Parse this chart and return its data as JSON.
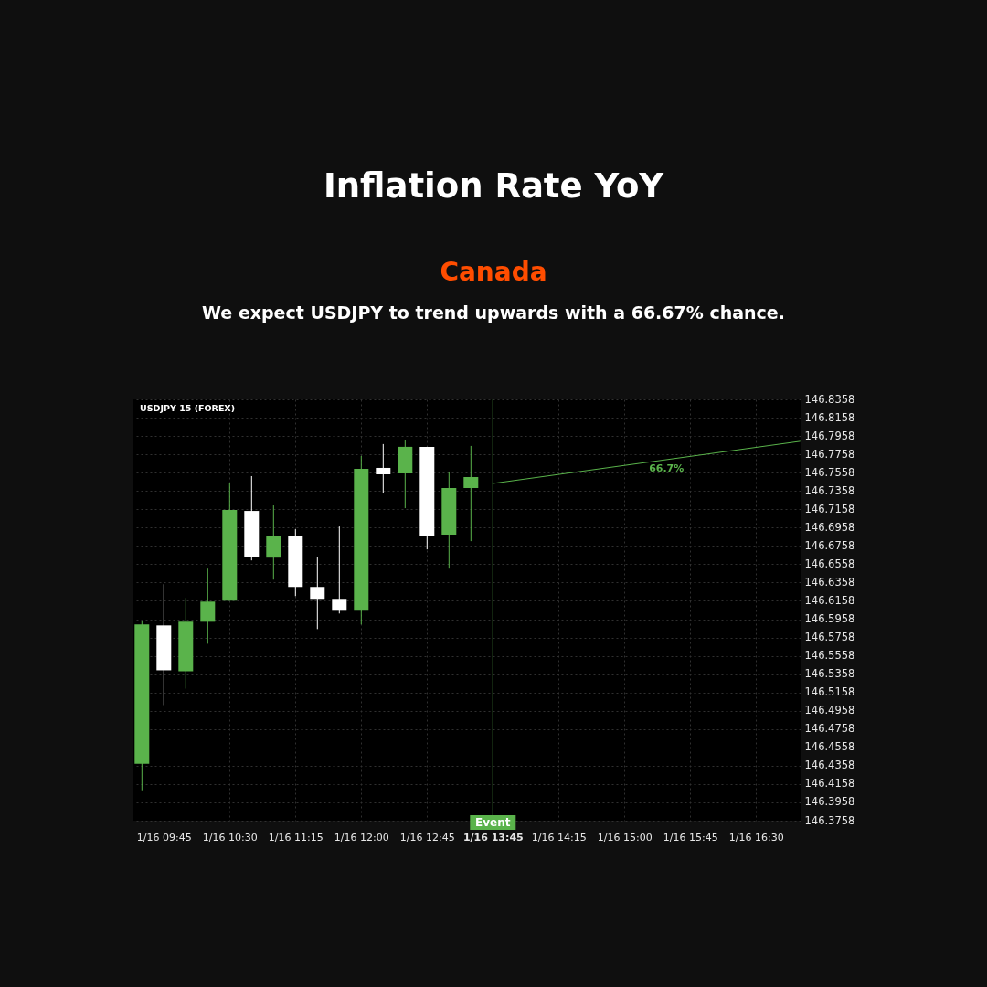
{
  "chart_data": {
    "type": "candlestick",
    "title": "Inflation Rate YoY",
    "subtitle": "Canada",
    "annotations": [
      "We expect USDJPY to trend upwards with a 66.67% chance.",
      "USDJPY 15 (FOREX)",
      {
        "text": "66.7%",
        "y": 146.77
      }
    ],
    "categories": [
      null,
      "1/16 09:45",
      null,
      null,
      "1/16 10:30",
      null,
      null,
      "1/16 11:15",
      null,
      null,
      "1/16 12:00",
      null,
      null,
      "1/16 12:45",
      null,
      null,
      "1/16 13:45",
      null,
      null,
      "1/16 14:15",
      null,
      null,
      "1/16 15:00",
      null,
      null,
      "1/16 15:45",
      null,
      null,
      "1/16 16:30",
      null,
      null
    ],
    "ohlc": [
      [
        146.438,
        146.594,
        146.409,
        146.59
      ],
      [
        146.589,
        146.634,
        146.502,
        146.54
      ],
      [
        146.539,
        146.619,
        146.52,
        146.593
      ],
      [
        146.593,
        146.651,
        146.569,
        146.615
      ],
      [
        146.616,
        146.745,
        146.616,
        146.715
      ],
      [
        146.714,
        146.752,
        146.66,
        146.664
      ],
      [
        146.663,
        146.72,
        146.639,
        146.687
      ],
      [
        146.687,
        146.694,
        146.621,
        146.631
      ],
      [
        146.631,
        146.664,
        146.585,
        146.618
      ],
      [
        146.618,
        146.697,
        146.602,
        146.605
      ],
      [
        146.605,
        146.774,
        146.59,
        146.76
      ],
      [
        146.761,
        146.787,
        146.733,
        146.754
      ],
      [
        146.755,
        146.791,
        146.717,
        146.784
      ],
      [
        146.784,
        146.784,
        146.672,
        146.687
      ],
      [
        146.688,
        146.757,
        146.651,
        146.739
      ],
      [
        146.739,
        146.785,
        146.681,
        146.751
      ],
      null,
      null,
      null,
      null,
      null,
      null,
      null,
      null,
      null,
      null,
      null,
      null,
      null,
      null,
      null
    ],
    "colors": [
      "#5ab34b",
      "#ffffff",
      "#5ab34b",
      "#5ab34b",
      "#5ab34b",
      "#ffffff",
      "#5ab34b",
      "#ffffff",
      "#ffffff",
      "#ffffff",
      "#5ab34b",
      "#ffffff",
      "#5ab34b",
      "#ffffff",
      "#5ab34b",
      "#5ab34b",
      null,
      null,
      null,
      null,
      null,
      null,
      null,
      null,
      null,
      null,
      null,
      null,
      null,
      null,
      null
    ],
    "series": [
      {
        "type": "line",
        "color": "#5ab34b",
        "values": [
          null,
          null,
          null,
          null,
          null,
          null,
          null,
          null,
          null,
          null,
          null,
          null,
          null,
          null,
          null,
          null,
          146.744,
          null,
          null,
          null,
          null,
          null,
          null,
          null,
          null,
          null,
          null,
          null,
          null,
          null,
          146.79
        ]
      }
    ],
    "ylim": [
      146.3758,
      146.8358
    ],
    "yticks": [
      146.3758,
      146.3958,
      146.4158,
      146.4358,
      146.4558,
      146.4758,
      146.4958,
      146.5158,
      146.5358,
      146.5558,
      146.5758,
      146.5958,
      146.6158,
      146.6358,
      146.6558,
      146.6758,
      146.6958,
      146.7158,
      146.7358,
      146.7558,
      146.7758,
      146.7958,
      146.8158,
      146.8358
    ],
    "ref_lines": [
      {
        "axis": "x",
        "value": "1/16 13:45",
        "label": "Event",
        "color": "#5ab34b"
      }
    ],
    "grid": true
  }
}
